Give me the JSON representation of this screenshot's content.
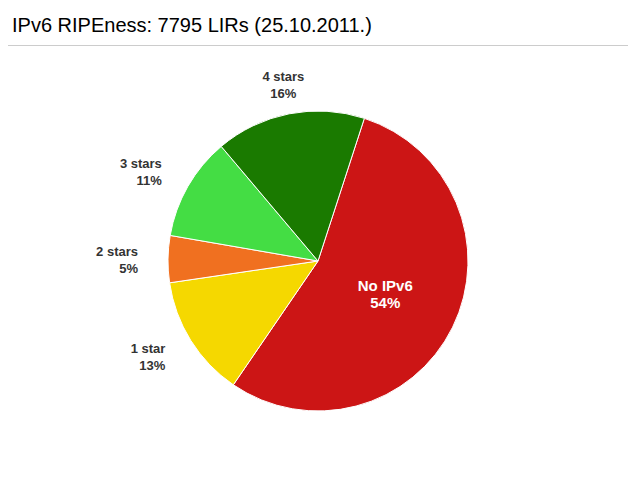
{
  "chart_data": {
    "type": "pie",
    "title": "IPv6 RIPEness: 7795 LIRs (25.10.2011.)",
    "categories": [
      "No IPv6",
      "1 star",
      "2 stars",
      "3 stars",
      "4 stars"
    ],
    "values": [
      54,
      13,
      5,
      11,
      16
    ],
    "value_labels": [
      "54%",
      "13%",
      "5%",
      "11%",
      "16%"
    ],
    "colors": [
      "#cc1515",
      "#f5d800",
      "#f07020",
      "#44dd44",
      "#1a7a00"
    ],
    "data_labels": true
  }
}
